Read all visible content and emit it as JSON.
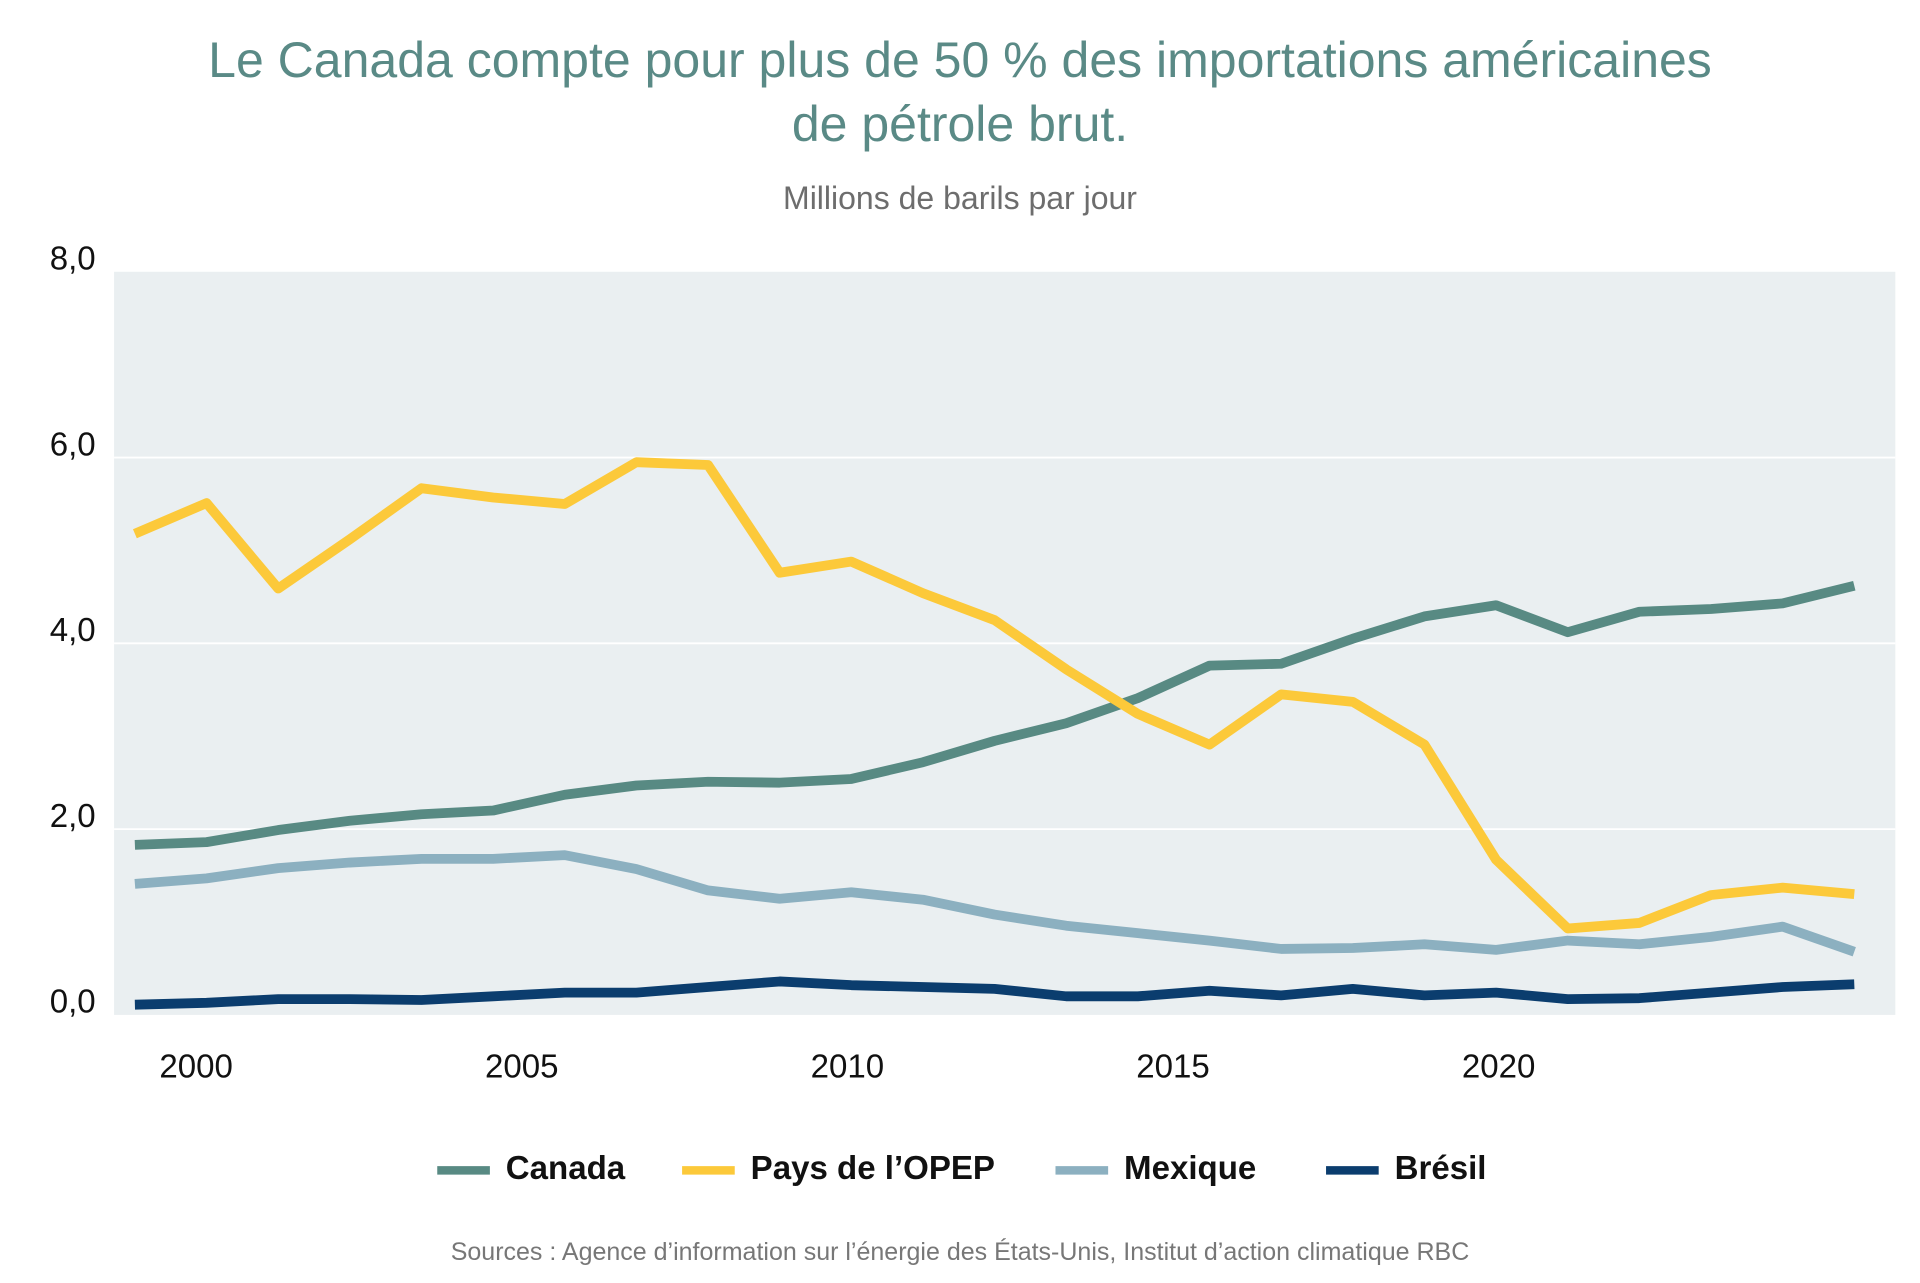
{
  "chart_data": {
    "type": "line",
    "title": "Le Canada compte pour plus de 50 % des importations américaines de pétrole brut.",
    "subtitle": "Millions de barils par jour",
    "source": "Sources : Agence d’information sur l’énergie des États-Unis, Institut d’action climatique RBC",
    "x": [
      1999.06,
      2000.16,
      2001.26,
      2002.36,
      2003.46,
      2004.56,
      2005.66,
      2006.76,
      2007.86,
      2008.96,
      2010.06,
      2011.16,
      2012.26,
      2013.36,
      2014.46,
      2015.56,
      2016.66,
      2017.76,
      2018.86,
      2019.96,
      2021.06,
      2022.16,
      2023.26,
      2024.36,
      2025.46
    ],
    "xlim": [
      1998.74,
      2026.09
    ],
    "xticks": [
      2000,
      2005,
      2010,
      2015,
      2020
    ],
    "ylim": [
      0,
      8
    ],
    "yticks": [
      {
        "value": 0,
        "label": "0,0"
      },
      {
        "value": 2,
        "label": "2,0"
      },
      {
        "value": 4,
        "label": "4,0"
      },
      {
        "value": 6,
        "label": "6,0"
      },
      {
        "value": 8,
        "label": "8,0"
      }
    ],
    "grid": true,
    "legend": "bottom",
    "series": [
      {
        "name": "Canada",
        "color": "#588a83",
        "values": [
          1.83,
          1.86,
          1.99,
          2.09,
          2.16,
          2.2,
          2.37,
          2.47,
          2.51,
          2.5,
          2.54,
          2.72,
          2.95,
          3.14,
          3.41,
          3.76,
          3.78,
          4.05,
          4.29,
          4.41,
          4.12,
          4.34,
          4.37,
          4.43,
          4.62
        ]
      },
      {
        "name": "Pays de l’OPEP",
        "color": "#fcc93a",
        "values": [
          5.18,
          5.51,
          4.59,
          5.12,
          5.67,
          5.57,
          5.5,
          5.95,
          5.92,
          4.76,
          4.88,
          4.54,
          4.25,
          3.72,
          3.24,
          2.91,
          3.45,
          3.37,
          2.91,
          1.67,
          0.93,
          0.99,
          1.29,
          1.37,
          1.3
        ]
      },
      {
        "name": "Mexique",
        "color": "#8cb0c0",
        "values": [
          1.41,
          1.47,
          1.58,
          1.64,
          1.68,
          1.68,
          1.72,
          1.57,
          1.34,
          1.25,
          1.32,
          1.24,
          1.08,
          0.96,
          0.88,
          0.8,
          0.71,
          0.72,
          0.76,
          0.7,
          0.8,
          0.76,
          0.84,
          0.95,
          0.68
        ]
      },
      {
        "name": "Brésil",
        "color": "#0b3d6e",
        "values": [
          0.11,
          0.13,
          0.17,
          0.17,
          0.16,
          0.2,
          0.24,
          0.24,
          0.3,
          0.36,
          0.32,
          0.3,
          0.28,
          0.2,
          0.2,
          0.26,
          0.21,
          0.28,
          0.21,
          0.24,
          0.17,
          0.18,
          0.24,
          0.3,
          0.33
        ]
      }
    ]
  }
}
